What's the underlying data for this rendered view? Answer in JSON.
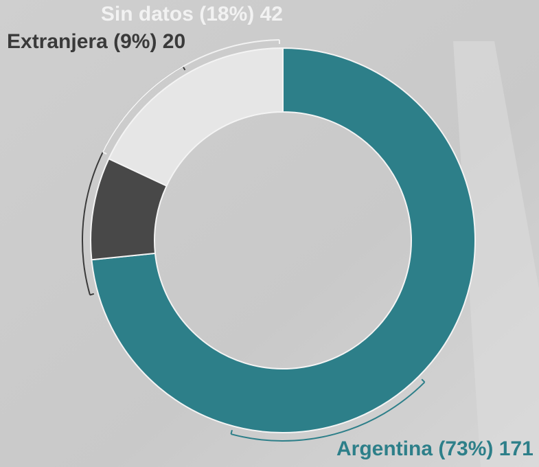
{
  "chart_data": {
    "type": "donut",
    "categories": [
      "Argentina",
      "Extranjera",
      "Sin datos"
    ],
    "percent_labels": [
      "(73%)",
      "(9%)",
      "(18%)"
    ],
    "values": [
      171,
      20,
      42
    ],
    "colors": [
      "#2d7f89",
      "#484848",
      "#e6e6e6"
    ],
    "label_colors": [
      "#2d7f89",
      "#3a3a3a",
      "#f2f2f2"
    ]
  }
}
